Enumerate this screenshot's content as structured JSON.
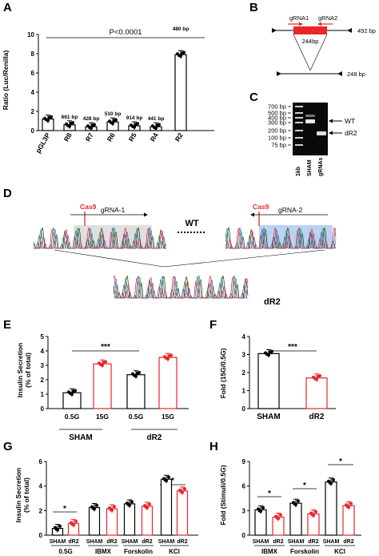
{
  "panel_letters": [
    "A",
    "B",
    "C",
    "D",
    "E",
    "F",
    "G",
    "H"
  ],
  "panelA": {
    "ylabel": "Ratio (Luc/Renilla)",
    "pvalue": "P<0.0001",
    "yticks": [
      "0",
      "2",
      "4",
      "6",
      "8",
      "10"
    ],
    "categories": [
      "pGL3P",
      "R8",
      "R7",
      "R6",
      "R5",
      "R4",
      "R2"
    ],
    "bar_labels": [
      "",
      "661 bp",
      "428 bp",
      "510 bp",
      "914 bp",
      "441 bp",
      "480 bp"
    ],
    "values": [
      1.2,
      0.6,
      0.4,
      0.9,
      0.5,
      0.4,
      7.9
    ]
  },
  "panelB": {
    "grna1": "gRNA1",
    "grna2": "gRNA2",
    "deletion": "244bp",
    "wt_size": "492 bp",
    "del_size": "248 bp"
  },
  "panelC": {
    "ladder": [
      "700 bp",
      "500 bp",
      "400 bp",
      "300 bp",
      "200 bp",
      "100 bp",
      "75 bp"
    ],
    "lanes": [
      "1kb",
      "SHAM",
      "gRNAs"
    ],
    "band_wt": "WT",
    "band_dr2": "dR2"
  },
  "panelD": {
    "cas9_left": "Cas9",
    "grna_left": "gRNA-1",
    "cas9_right": "Cas9",
    "grna_right": "gRNA-2",
    "wt": "WT",
    "dr2": "dR2"
  },
  "panelE": {
    "ylabel_1": "Insulin Secretion",
    "ylabel_2": "(% of total)",
    "sig": "***",
    "yticks": [
      "0",
      "1",
      "2",
      "3",
      "4",
      "5"
    ],
    "bar_labels": [
      "0.5G",
      "15G",
      "0.5G",
      "15G"
    ],
    "groups": [
      "SHAM",
      "dR2"
    ],
    "values": [
      1.1,
      3.1,
      2.35,
      3.55
    ]
  },
  "panelF": {
    "ylabel": "Fold (15G/0.5G)",
    "sig": "***",
    "yticks": [
      "0",
      "1",
      "2",
      "3",
      "4"
    ],
    "categories": [
      "SHAM",
      "dR2"
    ],
    "values": [
      3.05,
      1.7
    ]
  },
  "panelG": {
    "ylabel_1": "Insulin Secretion",
    "ylabel_2": "(% of total)",
    "sig1": "*",
    "sig2": "*",
    "yticks": [
      "0",
      "2",
      "4",
      "6"
    ],
    "bar_labels": [
      "SHAM",
      "dR2",
      "SHAM",
      "dR2",
      "SHAM",
      "dR2",
      "SHAM",
      "dR2"
    ],
    "conditions": [
      "0.5G",
      "IBMX",
      "Forskolin",
      "KCl"
    ],
    "values": [
      0.55,
      0.95,
      2.25,
      2.15,
      2.55,
      2.35,
      4.55,
      3.6
    ]
  },
  "panelH": {
    "ylabel": "Fold (Stimuli/0.5G)",
    "sig1": "*",
    "sig2": "*",
    "sig3": "*",
    "yticks": [
      "0",
      "3",
      "6",
      "9"
    ],
    "bar_labels": [
      "SHAM",
      "dR2",
      "SHAM",
      "dR2",
      "SHAM",
      "dR2"
    ],
    "conditions": [
      "IBMX",
      "Forskolin",
      "KCl"
    ],
    "values": [
      3.1,
      2.2,
      3.9,
      2.6,
      6.5,
      3.6
    ]
  },
  "colors": {
    "sham": "#000000",
    "dr2": "#e8262b",
    "blue_highlight": "#a9c8ef"
  }
}
